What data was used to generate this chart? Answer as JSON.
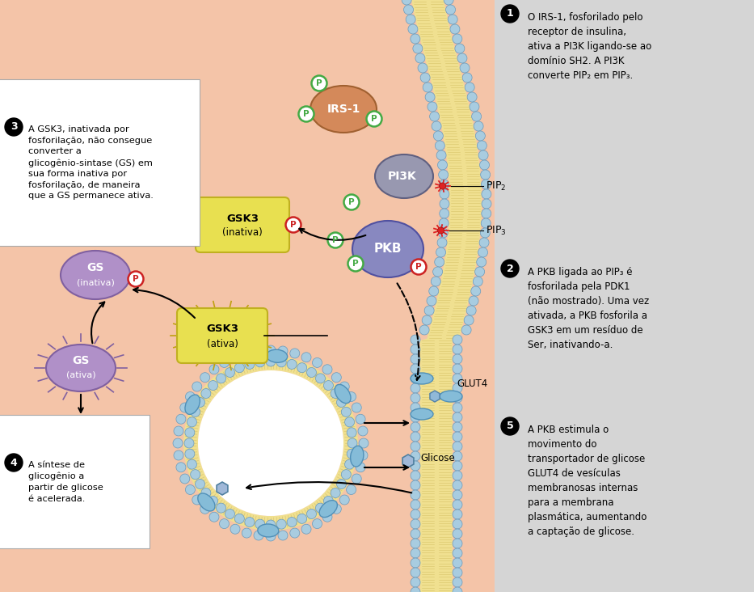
{
  "bg_color": "#f4c4a8",
  "right_panel_color": "#d5d5d5",
  "membrane_bead_color": "#a8cce0",
  "membrane_bead_edge": "#6899bb",
  "membrane_lipid_color": "#f0e090",
  "IRS1_color": "#d4895a",
  "PI3K_color": "#9898b0",
  "PKB_color": "#8888c0",
  "GSK3_color": "#e8e050",
  "GSK3_edge": "#c0b020",
  "GS_color": "#b090c8",
  "GS_edge": "#8060a0",
  "annotation1": "O IRS-1, fosforilado pelo\nreceptor de insulina,\nativa a PI3K ligando-se ao\ndomínio SH2. A PI3K\nconverte PIP₂ em PIP₃.",
  "annotation2": "A PKB ligada ao PIP₃ é\nfosforilada pela PDK1\n(não mostrado). Uma vez\nativada, a PKB fosforila a\nGSK3 em um resíduo de\nSer, inativando-a.",
  "annotation3": "A GSK3, inativada por\nfosforilação, não consegue\nconverter a\nglicogênio-sintase (GS) em\nsua forma inativa por\nfosforilação, de maneira\nque a GS permanece ativa.",
  "annotation4": "A síntese de\nglicogênio a\npartir de glicose\né acelerada.",
  "annotation5": "A PKB estimula o\nmovimento do\ntransportador de glicose\nGLUT4 de vesículas\nmembranosas internas\npara a membrana\nplasmática, aumentando\na captação de glicose."
}
